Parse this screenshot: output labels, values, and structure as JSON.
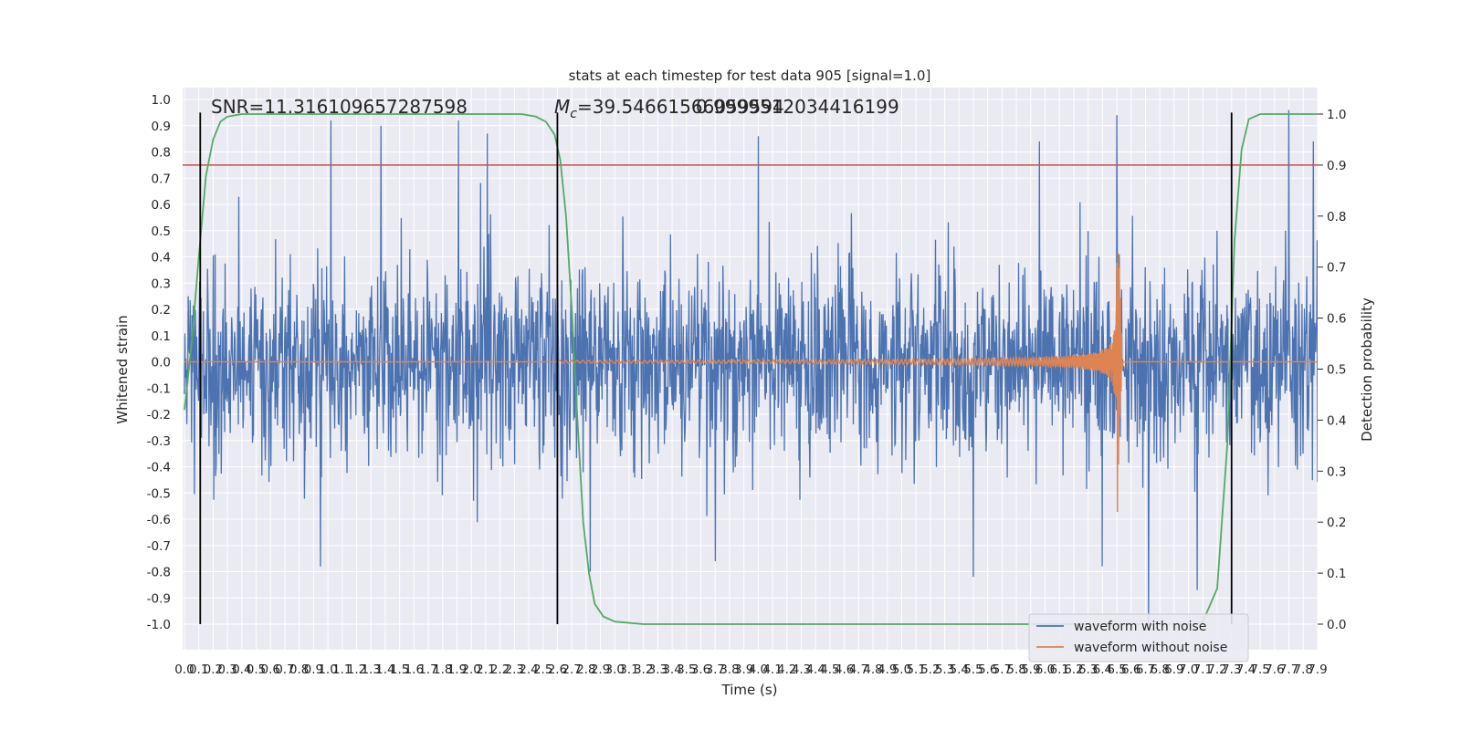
{
  "chart_data": {
    "type": "line",
    "title": "stats at each timestep for test data 905 [signal=1.0]",
    "xlabel": "Time (s)",
    "ylabel": "Whitened strain",
    "y2label": "Detection probability",
    "xlim": [
      0.0,
      7.9
    ],
    "ylim": [
      -1.0,
      1.0
    ],
    "y2lim": [
      0.0,
      1.0
    ],
    "x_ticks": [
      "0.0",
      "0.1",
      "0.2",
      "0.3",
      "0.4",
      "0.5",
      "0.6",
      "0.7",
      "0.8",
      "0.9",
      "1.0",
      "1.1",
      "1.2",
      "1.3",
      "1.4",
      "1.5",
      "1.6",
      "1.7",
      "1.8",
      "1.9",
      "2.0",
      "2.1",
      "2.2",
      "2.3",
      "2.4",
      "2.5",
      "2.6",
      "2.7",
      "2.8",
      "2.9",
      "3.0",
      "3.1",
      "3.2",
      "3.3",
      "3.4",
      "3.5",
      "3.6",
      "3.7",
      "3.8",
      "3.9",
      "4.0",
      "4.1",
      "4.2",
      "4.3",
      "4.4",
      "4.5",
      "4.6",
      "4.7",
      "4.8",
      "4.9",
      "5.0",
      "5.1",
      "5.2",
      "5.3",
      "5.4",
      "5.5",
      "5.6",
      "5.7",
      "5.8",
      "5.9",
      "6.0",
      "6.1",
      "6.2",
      "6.3",
      "6.4",
      "6.5",
      "6.6",
      "6.7",
      "6.8",
      "6.9",
      "7.0",
      "7.1",
      "7.2",
      "7.3",
      "7.4",
      "7.5",
      "7.6",
      "7.7",
      "7.8",
      "7.9"
    ],
    "y_ticks": [
      "1.0",
      "0.9",
      "0.8",
      "0.7",
      "0.6",
      "0.5",
      "0.4",
      "0.3",
      "0.2",
      "0.1",
      "0.0",
      "-0.1",
      "-0.2",
      "-0.3",
      "-0.4",
      "-0.5",
      "-0.6",
      "-0.7",
      "-0.8",
      "-0.9",
      "-1.0"
    ],
    "y2_ticks": [
      "1.0",
      "0.9",
      "0.8",
      "0.7",
      "0.6",
      "0.5",
      "0.4",
      "0.3",
      "0.2",
      "0.1",
      "0.0"
    ],
    "annotations": {
      "snr": "SNR=11.316109657287598",
      "mc": "=39.54661566059594",
      "mc_symbol": "M",
      "mc_sub": "c",
      "overlap": "0.9999512034416199"
    },
    "series": [
      {
        "name": "waveform with noise",
        "color": "#4c72b0",
        "noise_std": 0.18,
        "outlier_peaks": [
          {
            "x": 1.02,
            "y": 0.92
          },
          {
            "x": 1.37,
            "y": 0.9
          },
          {
            "x": 1.91,
            "y": 0.92
          },
          {
            "x": 2.11,
            "y": 0.87
          },
          {
            "x": 4.0,
            "y": 0.86
          },
          {
            "x": 5.96,
            "y": 0.84
          },
          {
            "x": 6.5,
            "y": 0.94
          },
          {
            "x": 7.7,
            "y": 0.96
          },
          {
            "x": 7.87,
            "y": 0.84
          },
          {
            "x": 6.72,
            "y": -1.0
          },
          {
            "x": 7.06,
            "y": -0.87
          },
          {
            "x": 0.95,
            "y": -0.78
          },
          {
            "x": 2.83,
            "y": -0.8
          },
          {
            "x": 3.7,
            "y": -0.76
          },
          {
            "x": 5.5,
            "y": -0.82
          },
          {
            "x": 6.4,
            "y": -0.78
          }
        ]
      },
      {
        "name": "waveform without noise",
        "color": "#dd8452",
        "chirp_start": 2.6,
        "chirp_merger": 6.5,
        "chirp_peak_amplitude": 0.65
      },
      {
        "name": "detection probability",
        "color": "#55a868",
        "axis": "y2",
        "points": [
          [
            0.0,
            0.42
          ],
          [
            0.05,
            0.55
          ],
          [
            0.1,
            0.72
          ],
          [
            0.15,
            0.88
          ],
          [
            0.2,
            0.95
          ],
          [
            0.25,
            0.985
          ],
          [
            0.3,
            0.995
          ],
          [
            0.4,
            1.0
          ],
          [
            2.35,
            1.0
          ],
          [
            2.45,
            0.995
          ],
          [
            2.52,
            0.985
          ],
          [
            2.58,
            0.96
          ],
          [
            2.62,
            0.91
          ],
          [
            2.66,
            0.8
          ],
          [
            2.7,
            0.62
          ],
          [
            2.74,
            0.4
          ],
          [
            2.78,
            0.2
          ],
          [
            2.82,
            0.1
          ],
          [
            2.86,
            0.04
          ],
          [
            2.92,
            0.015
          ],
          [
            3.0,
            0.005
          ],
          [
            3.2,
            0.0
          ],
          [
            7.05,
            0.0
          ],
          [
            7.1,
            0.005
          ],
          [
            7.2,
            0.07
          ],
          [
            7.27,
            0.35
          ],
          [
            7.32,
            0.75
          ],
          [
            7.37,
            0.93
          ],
          [
            7.42,
            0.99
          ],
          [
            7.5,
            1.0
          ],
          [
            7.9,
            1.0
          ]
        ]
      }
    ],
    "hlines": [
      {
        "axis": "y2",
        "value": 0.9,
        "color": "#c44e52"
      }
    ],
    "vlines": [
      {
        "x": 0.11,
        "ymin": -1.0,
        "ymax": 0.95,
        "color": "#000000"
      },
      {
        "x": 2.6,
        "ymin": -1.0,
        "ymax": 0.95,
        "color": "#000000"
      },
      {
        "x": 7.3,
        "ymin": -1.0,
        "ymax": 0.95,
        "color": "#000000"
      }
    ],
    "grid": true,
    "legend_position": "lower-right"
  }
}
